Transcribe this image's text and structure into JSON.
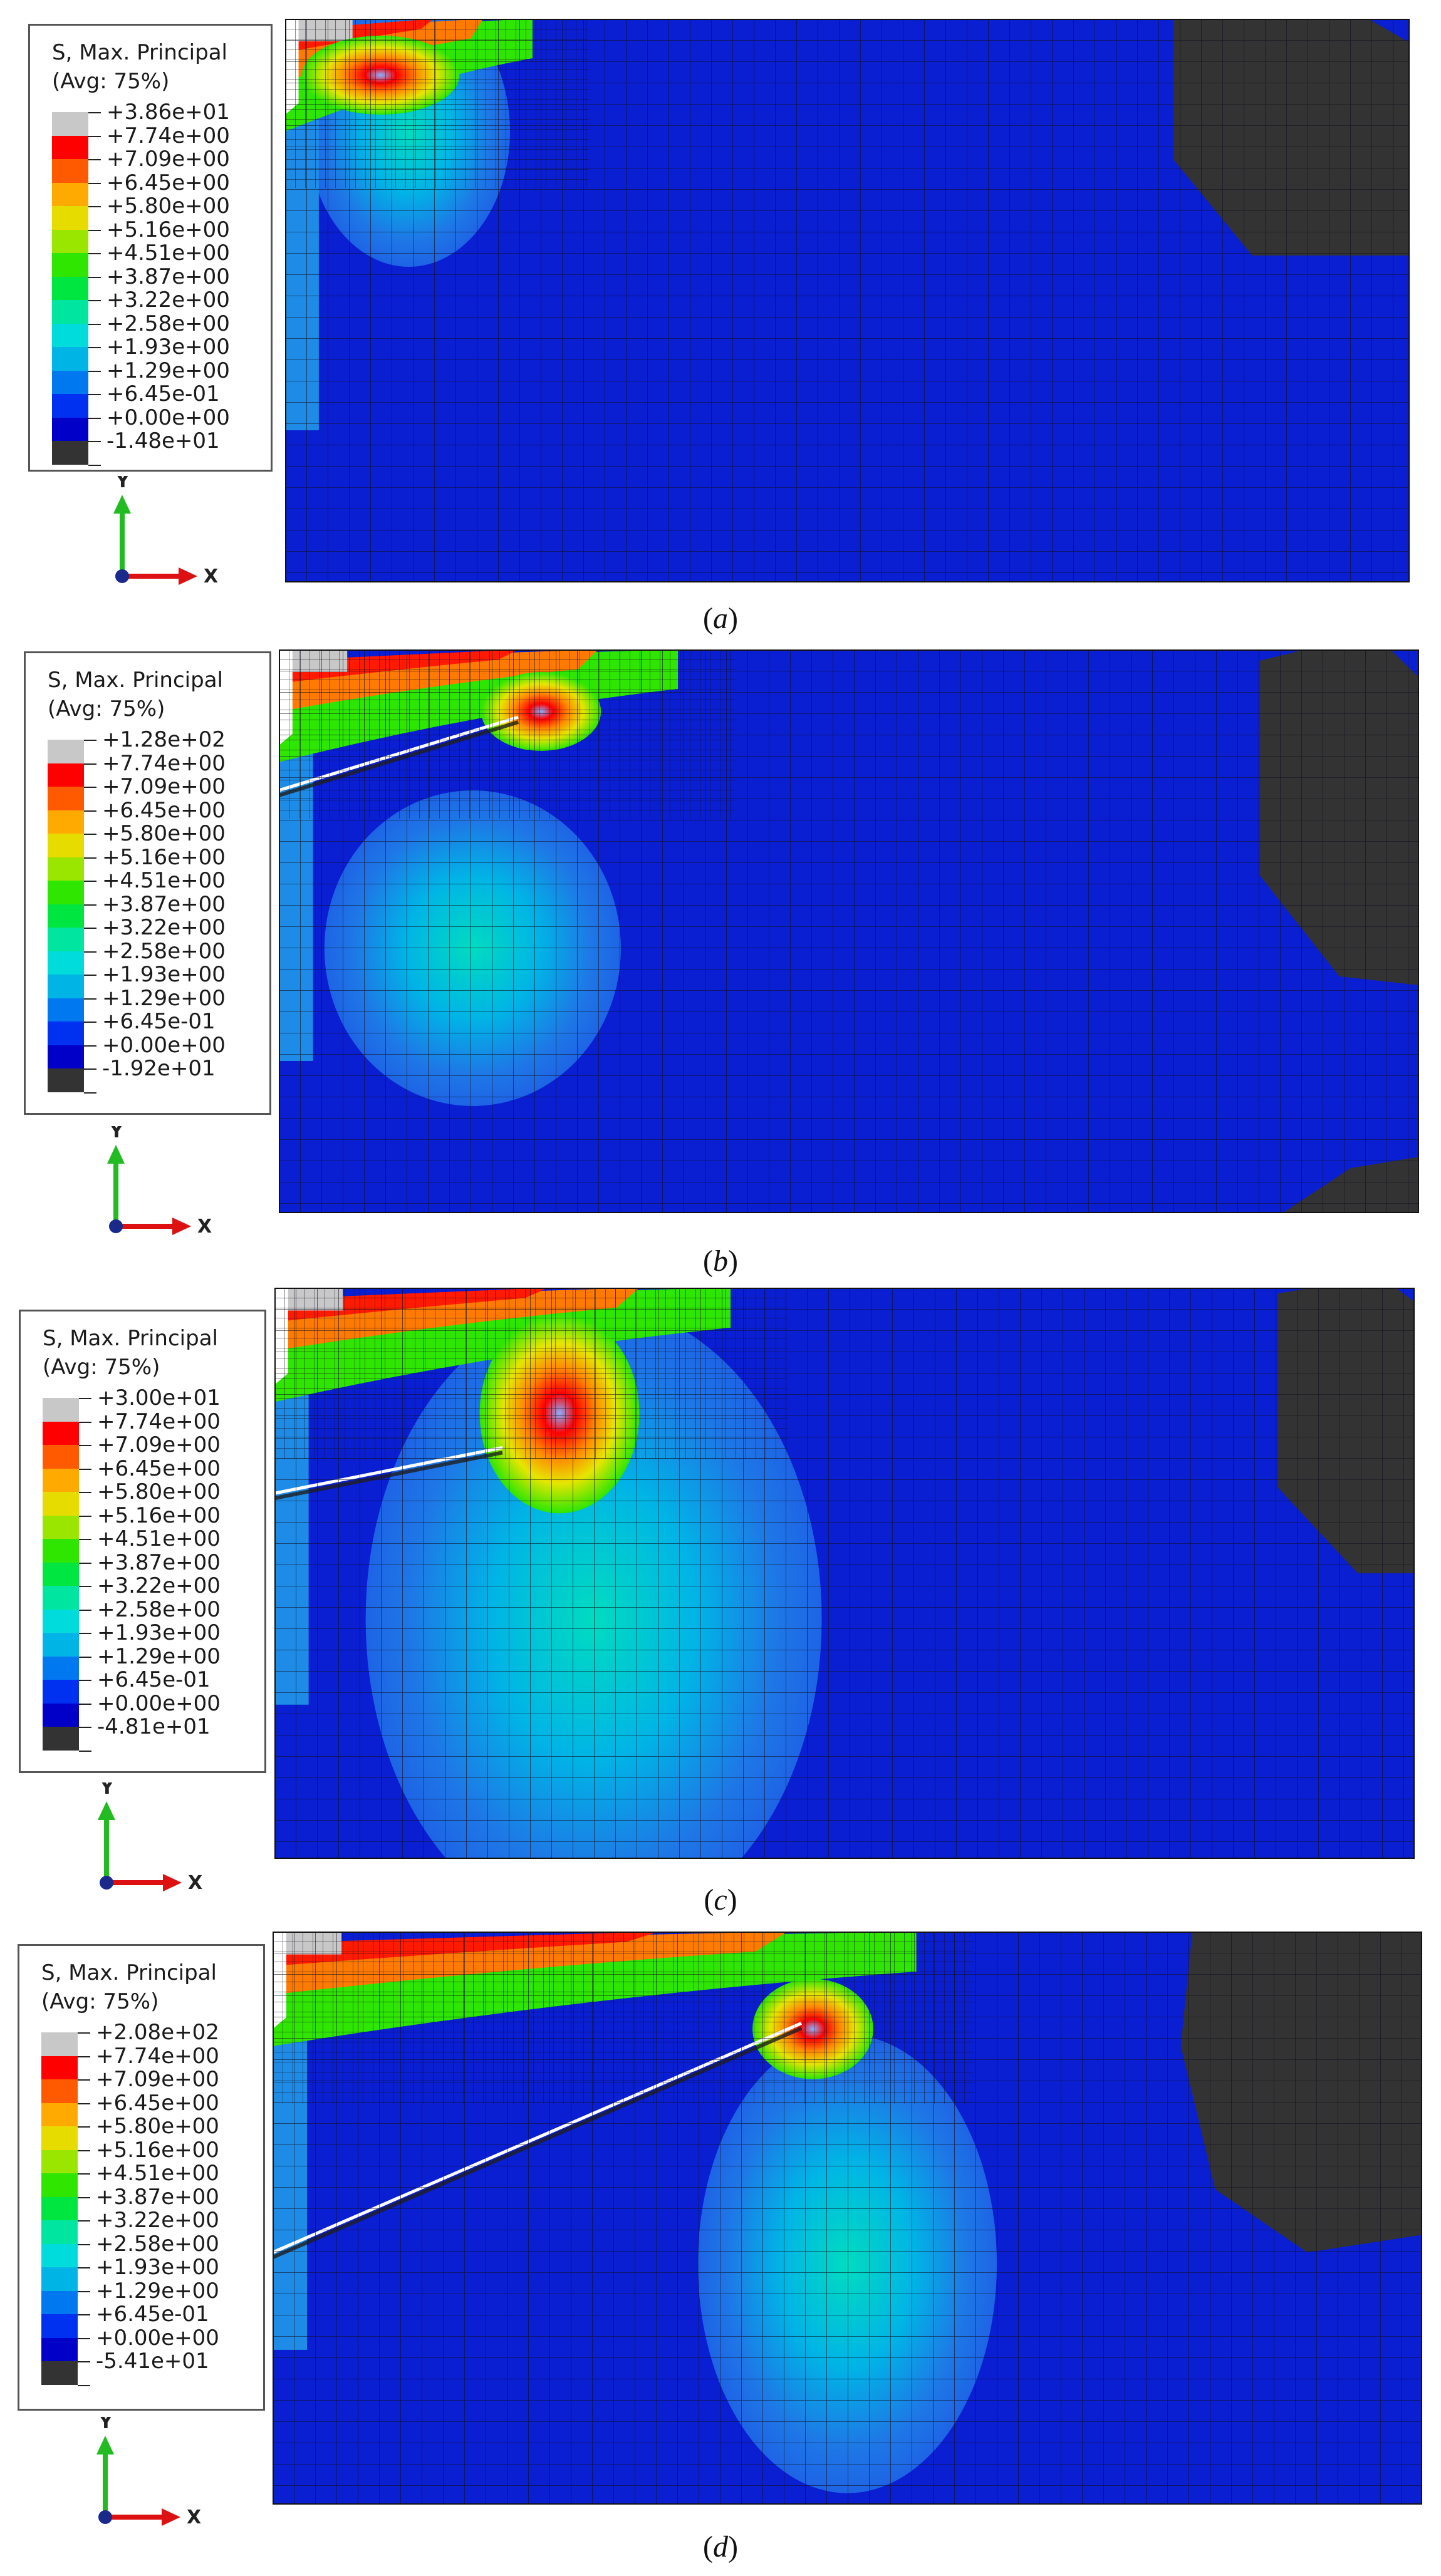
{
  "legend_title": [
    "S, Max. Principal",
    "(Avg: 75%)"
  ],
  "colors": [
    "#c8c8c8",
    "#ff0000",
    "#ff5a00",
    "#ffaa00",
    "#e6dc00",
    "#9ae600",
    "#2ee600",
    "#00e640",
    "#00e6a0",
    "#00dcdc",
    "#00b4e6",
    "#0078f0",
    "#0030f0",
    "#0000c8",
    "#333333"
  ],
  "panels": [
    {
      "id": "a",
      "caption": "a",
      "labels": [
        "+3.86e+01",
        "+7.74e+00",
        "+7.09e+00",
        "+6.45e+00",
        "+5.80e+00",
        "+5.16e+00",
        "+4.51e+00",
        "+3.87e+00",
        "+3.22e+00",
        "+2.58e+00",
        "+1.93e+00",
        "+1.29e+00",
        "+6.45e-01",
        "+0.00e+00",
        "-1.48e+01"
      ]
    },
    {
      "id": "b",
      "caption": "b",
      "labels": [
        "+1.28e+02",
        "+7.74e+00",
        "+7.09e+00",
        "+6.45e+00",
        "+5.80e+00",
        "+5.16e+00",
        "+4.51e+00",
        "+3.87e+00",
        "+3.22e+00",
        "+2.58e+00",
        "+1.93e+00",
        "+1.29e+00",
        "+6.45e-01",
        "+0.00e+00",
        "-1.92e+01"
      ]
    },
    {
      "id": "c",
      "caption": "c",
      "labels": [
        "+3.00e+01",
        "+7.74e+00",
        "+7.09e+00",
        "+6.45e+00",
        "+5.80e+00",
        "+5.16e+00",
        "+4.51e+00",
        "+3.87e+00",
        "+3.22e+00",
        "+2.58e+00",
        "+1.93e+00",
        "+1.29e+00",
        "+6.45e-01",
        "+0.00e+00",
        "-4.81e+01"
      ]
    },
    {
      "id": "d",
      "caption": "d",
      "labels": [
        "+2.08e+02",
        "+7.74e+00",
        "+7.09e+00",
        "+6.45e+00",
        "+5.80e+00",
        "+5.16e+00",
        "+4.51e+00",
        "+3.87e+00",
        "+3.22e+00",
        "+2.58e+00",
        "+1.93e+00",
        "+1.29e+00",
        "+6.45e-01",
        "+0.00e+00",
        "-5.41e+01"
      ]
    }
  ],
  "axes": {
    "x": "X",
    "y": "Y"
  }
}
